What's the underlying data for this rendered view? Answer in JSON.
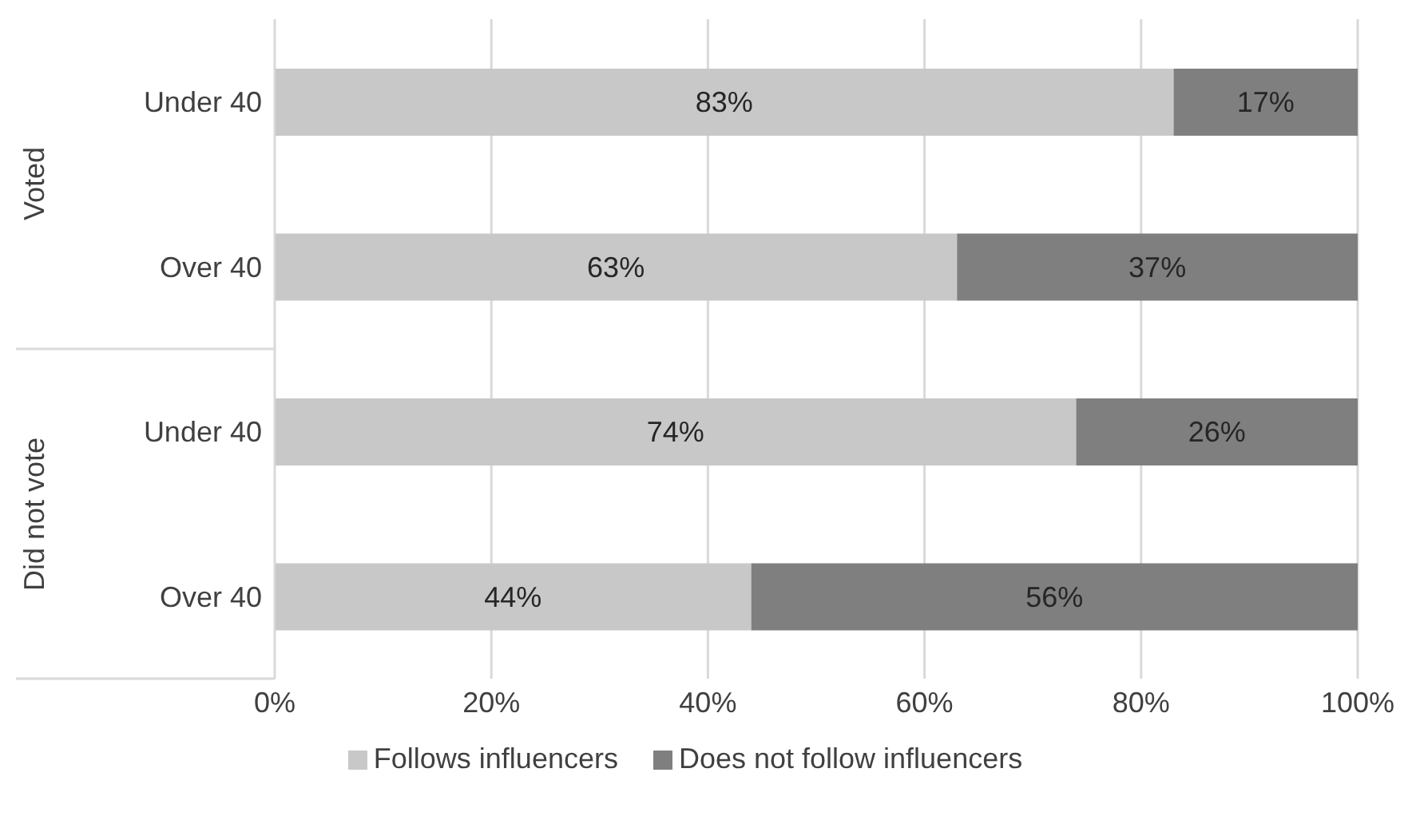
{
  "chart_data": {
    "type": "bar",
    "orientation": "horizontal",
    "stacked": true,
    "categories": [
      "Under 40",
      "Over 40",
      "Under 40",
      "Over 40"
    ],
    "annotations": [
      "Voted",
      "Did not vote"
    ],
    "series": [
      {
        "name": "Follows influencers",
        "color": "#c8c8c8",
        "values": [
          83,
          63,
          74,
          44
        ],
        "value_labels": [
          "83%",
          "63%",
          "74%",
          "44%"
        ]
      },
      {
        "name": "Does not follow influencers",
        "color": "#7f7f7f",
        "values": [
          17,
          37,
          26,
          56
        ],
        "value_labels": [
          "17%",
          "37%",
          "26%",
          "56%"
        ]
      }
    ],
    "xlim": [
      0,
      100
    ],
    "xticks": [
      {
        "value": 0,
        "label": "0%"
      },
      {
        "value": 20,
        "label": "20%"
      },
      {
        "value": 40,
        "label": "40%"
      },
      {
        "value": 60,
        "label": "60%"
      },
      {
        "value": 80,
        "label": "80%"
      },
      {
        "value": 100,
        "label": "100%"
      }
    ],
    "grid": "x",
    "legend": "bottom"
  }
}
